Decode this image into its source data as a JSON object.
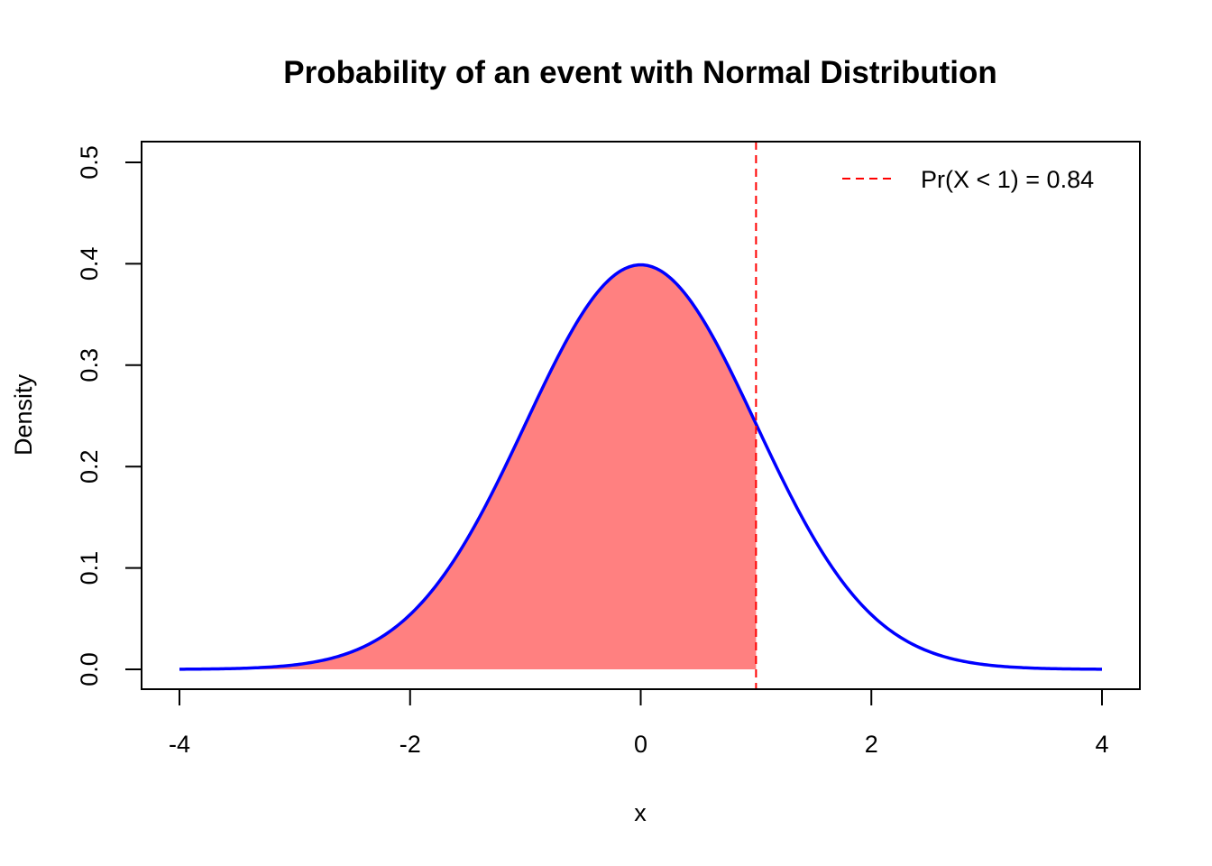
{
  "chart_data": {
    "type": "area",
    "title": "Probability of an event with Normal Distribution",
    "xlabel": "x",
    "ylabel": "Density",
    "xlim": [
      -4,
      4
    ],
    "ylim": [
      0,
      0.5
    ],
    "x_ticks": [
      "-4",
      "-2",
      "0",
      "2",
      "4"
    ],
    "x_tick_values": [
      -4,
      -2,
      0,
      2,
      4
    ],
    "y_ticks": [
      "0.0",
      "0.1",
      "0.2",
      "0.3",
      "0.4",
      "0.5"
    ],
    "y_tick_values": [
      0,
      0.1,
      0.2,
      0.3,
      0.4,
      0.5
    ],
    "grid": false,
    "series": [
      {
        "kind": "density_curve",
        "distribution": "normal",
        "mean": 0,
        "sd": 1,
        "x_range": [
          -4,
          4
        ],
        "color": "#0000ff"
      },
      {
        "kind": "shaded_area",
        "x_range": [
          -4,
          1
        ],
        "color": "#ff8080"
      },
      {
        "kind": "vertical_line",
        "x": 1,
        "style": "dashed",
        "color": "#ff0000"
      }
    ],
    "legend": {
      "placement": "top-right",
      "entries": [
        {
          "label": "Pr(X < 1) = 0.84",
          "line_style": "dashed",
          "color": "#ff0000"
        }
      ]
    }
  }
}
